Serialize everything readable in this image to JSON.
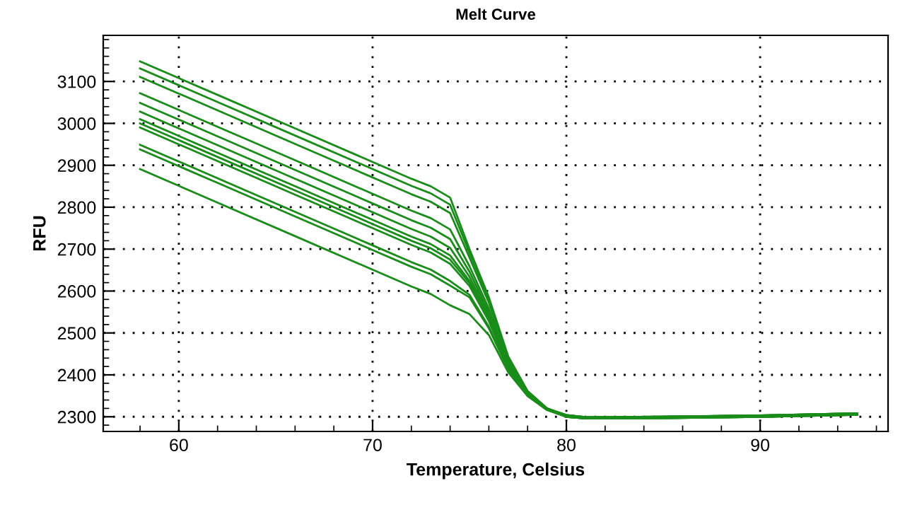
{
  "chart_data": {
    "type": "line",
    "title": "Melt Curve",
    "xlabel": "Temperature, Celsius",
    "ylabel": "RFU",
    "x": [
      58,
      62,
      66,
      70,
      72,
      73,
      74,
      75,
      76,
      77,
      78,
      79,
      80,
      81,
      85,
      90,
      95
    ],
    "xlim": [
      56.1,
      96.6
    ],
    "xticks": [
      60,
      70,
      80,
      90
    ],
    "ylim": [
      2265,
      3210
    ],
    "yticks": [
      2300,
      2400,
      2500,
      2600,
      2700,
      2800,
      2900,
      3000,
      3100
    ],
    "grid": true,
    "legend": false,
    "marker": "none",
    "line_style": "solid",
    "series": [
      {
        "color": "#1a8c1a",
        "values": [
          3148,
          3068,
          2988,
          2908,
          2868,
          2850,
          2823,
          2700,
          2585,
          2444,
          2361,
          2320,
          2304,
          2299,
          2300,
          2303,
          2308
        ]
      },
      {
        "color": "#1a8c1a",
        "values": [
          3131,
          3051,
          2971,
          2891,
          2851,
          2833,
          2806,
          2691,
          2579,
          2442,
          2361,
          2320,
          2302,
          2298,
          2299,
          2302,
          2307
        ]
      },
      {
        "color": "#1a8c1a",
        "values": [
          3111,
          3031,
          2951,
          2871,
          2831,
          2813,
          2786,
          2680,
          2572,
          2439,
          2360,
          2319,
          2300,
          2296,
          2297,
          2300,
          2305
        ]
      },
      {
        "color": "#1a8c1a",
        "values": [
          3072,
          2992,
          2912,
          2832,
          2792,
          2774,
          2747,
          2659,
          2558,
          2433,
          2358,
          2319,
          2304,
          2299,
          2300,
          2303,
          2308
        ]
      },
      {
        "color": "#1a8c1a",
        "values": [
          3049,
          2969,
          2889,
          2809,
          2769,
          2751,
          2724,
          2646,
          2550,
          2429,
          2356,
          2318,
          2302,
          2298,
          2299,
          2302,
          2307
        ]
      },
      {
        "color": "#1a8c1a",
        "values": [
          3028,
          2948,
          2868,
          2788,
          2748,
          2730,
          2703,
          2634,
          2543,
          2426,
          2355,
          2318,
          2300,
          2296,
          2297,
          2300,
          2305
        ]
      },
      {
        "color": "#1a8c1a",
        "values": [
          3010,
          2930,
          2850,
          2770,
          2730,
          2712,
          2685,
          2624,
          2537,
          2424,
          2355,
          2318,
          2304,
          2299,
          2300,
          2303,
          2308
        ]
      },
      {
        "color": "#1a8c1a",
        "values": [
          3000,
          2920,
          2840,
          2760,
          2720,
          2702,
          2675,
          2619,
          2533,
          2422,
          2354,
          2318,
          2302,
          2298,
          2299,
          2302,
          2307
        ]
      },
      {
        "color": "#1a8c1a",
        "values": [
          2990,
          2910,
          2830,
          2750,
          2710,
          2692,
          2665,
          2612,
          2528,
          2420,
          2353,
          2317,
          2300,
          2296,
          2297,
          2300,
          2305
        ]
      },
      {
        "color": "#1a8c1a",
        "values": [
          2949,
          2869,
          2789,
          2709,
          2669,
          2651,
          2624,
          2591,
          2515,
          2414,
          2351,
          2317,
          2304,
          2299,
          2300,
          2303,
          2308
        ]
      },
      {
        "color": "#1a8c1a",
        "values": [
          2938,
          2858,
          2778,
          2698,
          2658,
          2640,
          2613,
          2585,
          2511,
          2413,
          2351,
          2317,
          2302,
          2298,
          2299,
          2302,
          2307
        ]
      },
      {
        "color": "#1a8c1a",
        "values": [
          2891,
          2811,
          2731,
          2651,
          2611,
          2593,
          2566,
          2545,
          2495,
          2406,
          2349,
          2316,
          2300,
          2296,
          2297,
          2300,
          2305
        ]
      }
    ]
  }
}
